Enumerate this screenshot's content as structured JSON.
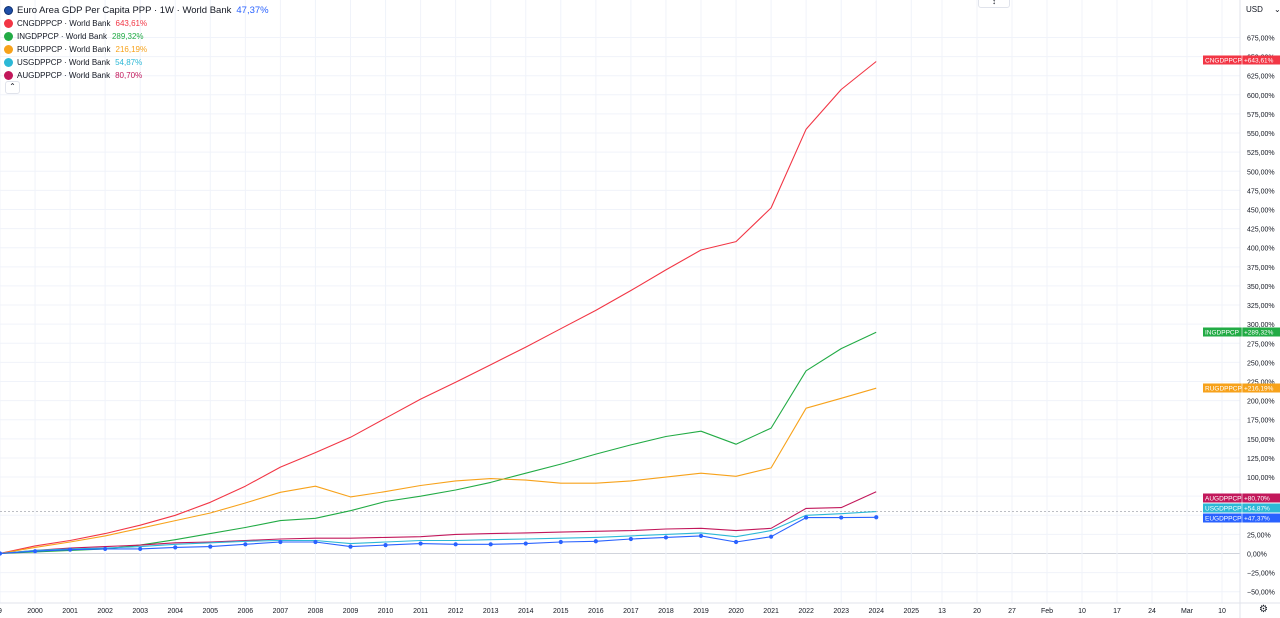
{
  "header": {
    "title": "Euro Area GDP Per Capita PPP · 1W · World Bank",
    "title_value": "47,37%",
    "currency": "USD",
    "collapse_icon": "chevron-up-icon",
    "currency_caret_icon": "chevron-down-icon",
    "settings_icon": "gear-icon"
  },
  "legend": [
    {
      "label": "CNGDPPCP · World Bank",
      "value": "643,61%",
      "color": "#f23645",
      "flag": "china-flag-icon"
    },
    {
      "label": "INGDPPCP · World Bank",
      "value": "289,32%",
      "color": "#22ab45",
      "flag": "india-flag-icon"
    },
    {
      "label": "RUGDPPCP · World Bank",
      "value": "216,19%",
      "color": "#f7a21b",
      "flag": "russia-flag-icon"
    },
    {
      "label": "USGDPPCP · World Bank",
      "value": "54,87%",
      "color": "#2cb8d6",
      "flag": "usa-flag-icon"
    },
    {
      "label": "AUGDPPCP · World Bank",
      "value": "80,70%",
      "color": "#c2185b",
      "flag": "australia-flag-icon"
    }
  ],
  "chart_data": {
    "type": "line",
    "x": [
      "1999",
      "2000",
      "2001",
      "2002",
      "2003",
      "2004",
      "2005",
      "2006",
      "2007",
      "2008",
      "2009",
      "2010",
      "2011",
      "2012",
      "2013",
      "2014",
      "2015",
      "2016",
      "2017",
      "2018",
      "2019",
      "2020",
      "2021",
      "2022",
      "2023",
      "2024"
    ],
    "x_tick_labels": [
      "9",
      "2000",
      "2001",
      "2002",
      "2003",
      "2004",
      "2005",
      "2006",
      "2007",
      "2008",
      "2009",
      "2010",
      "2011",
      "2012",
      "2013",
      "2014",
      "2015",
      "2016",
      "2017",
      "2018",
      "2019",
      "2020",
      "2021",
      "2022",
      "2023",
      "2024",
      "2025",
      "13",
      "20",
      "27",
      "Feb",
      "10",
      "17",
      "24",
      "Mar",
      "10"
    ],
    "y_tick_labels": [
      "675,00%",
      "650,00%",
      "625,00%",
      "600,00%",
      "575,00%",
      "550,00%",
      "525,00%",
      "500,00%",
      "475,00%",
      "450,00%",
      "425,00%",
      "400,00%",
      "375,00%",
      "350,00%",
      "325,00%",
      "300,00%",
      "275,00%",
      "250,00%",
      "225,00%",
      "200,00%",
      "175,00%",
      "150,00%",
      "125,00%",
      "100,00%",
      "75,00%",
      "50,00%",
      "25,00%",
      "0,00%",
      "−25,00%",
      "−50,00%"
    ],
    "ylim": [
      -55,
      695
    ],
    "y_unit": "%",
    "grid": true,
    "legend_position": "top-left",
    "series": [
      {
        "name": "CNGDPPCP",
        "color": "#f23645",
        "markers": false,
        "end_label": "+643,61%",
        "values": [
          0,
          10,
          17,
          26,
          37,
          50,
          67,
          88,
          113,
          132,
          152,
          177,
          202,
          224,
          247,
          270,
          294,
          318,
          344,
          371,
          397,
          408,
          452,
          555,
          607,
          643.61
        ]
      },
      {
        "name": "INGDPPCP",
        "color": "#22ab45",
        "markers": false,
        "end_label": "+289,32%",
        "values": [
          0,
          2,
          4,
          6,
          11,
          18,
          26,
          34,
          43,
          46,
          56,
          68,
          75,
          83,
          93,
          105,
          117,
          130,
          142,
          153,
          160,
          143,
          164,
          239,
          268,
          289.32
        ]
      },
      {
        "name": "RUGDPPCP",
        "color": "#f7a21b",
        "markers": false,
        "end_label": "+216,19%",
        "values": [
          0,
          8,
          15,
          23,
          33,
          43,
          53,
          66,
          80,
          88,
          74,
          81,
          89,
          95,
          98,
          96,
          92,
          92,
          95,
          100,
          105,
          101,
          112,
          190,
          203,
          216.19
        ]
      },
      {
        "name": "AUGDPPCP",
        "color": "#c2185b",
        "markers": false,
        "end_label": "+80,70%",
        "values": [
          0,
          4,
          7,
          9,
          11,
          14,
          15,
          17,
          19,
          20,
          20,
          21,
          22,
          25,
          26,
          27,
          28,
          29,
          30,
          32,
          33,
          30,
          33,
          59,
          60,
          80.7
        ]
      },
      {
        "name": "USGDPPCP",
        "color": "#2cb8d6",
        "markers": false,
        "end_label": "+54,87%",
        "values": [
          0,
          4,
          6,
          7,
          9,
          12,
          14,
          16,
          17,
          17,
          13,
          15,
          17,
          17,
          18,
          19,
          20,
          21,
          23,
          25,
          27,
          22,
          30,
          50,
          52,
          54.87
        ]
      },
      {
        "name": "EUGDPPCP",
        "color": "#2962ff",
        "markers": true,
        "end_label": "+47,37%",
        "values": [
          0,
          3,
          5,
          6,
          6,
          8,
          9,
          12,
          15,
          15,
          9,
          11,
          13,
          12,
          12,
          13,
          15,
          16,
          19,
          21,
          23,
          15,
          22,
          47,
          47,
          47.37
        ]
      }
    ]
  }
}
